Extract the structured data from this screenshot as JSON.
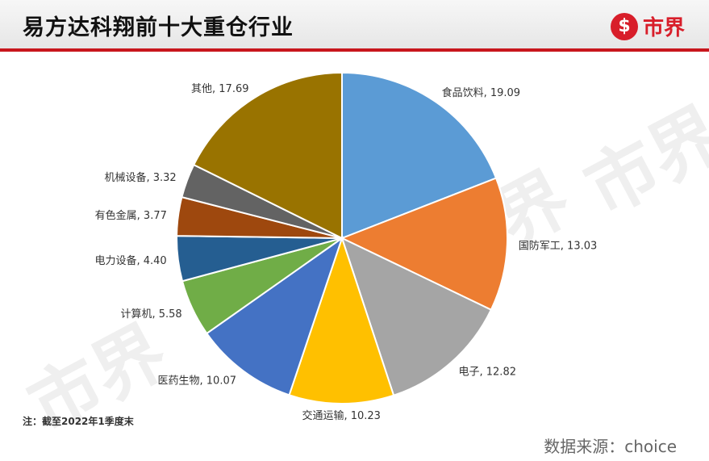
{
  "header": {
    "title": "易方达科翔前十大重仓行业",
    "logo_mark": "$",
    "logo_text": "市界"
  },
  "watermark_text": "市界",
  "note": "注：截至2022年1季度末",
  "source": "数据来源：choice",
  "colors": {
    "accent_red": "#c8161d"
  },
  "chart_data": {
    "type": "pie",
    "title": "易方达科翔前十大重仓行业",
    "start_angle_deg": 0,
    "direction": "clockwise",
    "slices": [
      {
        "label": "食品饮料",
        "value": 19.09,
        "color": "#5b9bd5"
      },
      {
        "label": "国防军工",
        "value": 13.03,
        "color": "#ed7d31"
      },
      {
        "label": "电子",
        "value": 12.82,
        "color": "#a5a5a5"
      },
      {
        "label": "交通运输",
        "value": 10.23,
        "color": "#ffc000"
      },
      {
        "label": "医药生物",
        "value": 10.07,
        "color": "#4472c4"
      },
      {
        "label": "计算机",
        "value": 5.58,
        "color": "#70ad47"
      },
      {
        "label": "电力设备",
        "value": 4.4,
        "color": "#255e91"
      },
      {
        "label": "有色金属",
        "value": 3.77,
        "color": "#9e480e"
      },
      {
        "label": "机械设备",
        "value": 3.32,
        "color": "#636363"
      },
      {
        "label": "其他",
        "value": 17.69,
        "color": "#997300"
      }
    ]
  }
}
